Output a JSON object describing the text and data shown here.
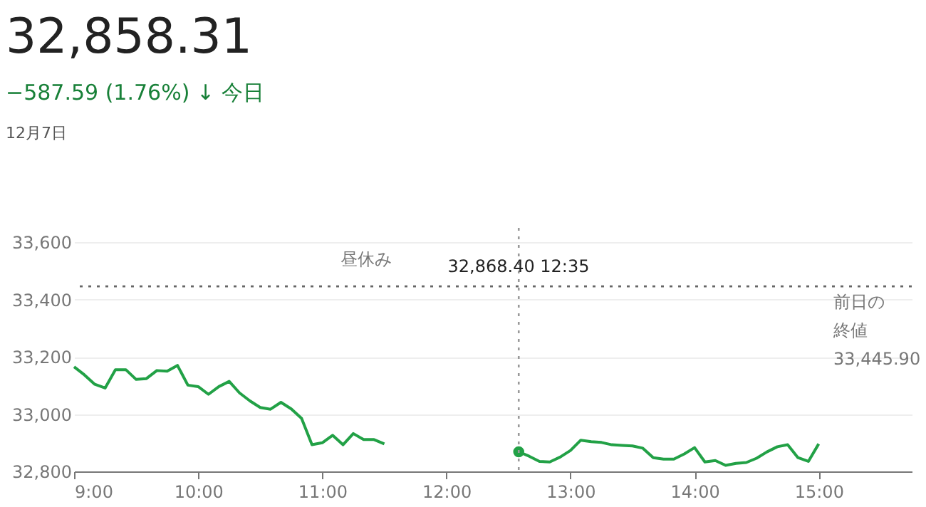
{
  "chart_data": {
    "type": "line",
    "title": "32,858.31",
    "subtitle": "−587.59 (1.76%) ↓ 今日",
    "annotations": [
      "12月7日",
      "昼休み",
      "32,868.40 12:35"
    ],
    "x": [
      9,
      9.083,
      9.167,
      9.25,
      9.333,
      9.417,
      9.5,
      9.583,
      9.667,
      9.75,
      9.833,
      9.917,
      10,
      10.083,
      10.167,
      10.25,
      10.333,
      10.417,
      10.5,
      10.583,
      10.667,
      10.75,
      10.833,
      10.917,
      11,
      11.083,
      11.167,
      11.25,
      11.333,
      11.417,
      11.5,
      12,
      12.583,
      12.667,
      12.75,
      12.833,
      12.917,
      13,
      13.083,
      13.167,
      13.25,
      13.333,
      13.417,
      13.5,
      13.583,
      13.667,
      13.75,
      13.833,
      13.917,
      14,
      14.083,
      14.167,
      14.25,
      14.333,
      14.417,
      14.5,
      14.583,
      14.667,
      14.75,
      14.833,
      14.917,
      15
    ],
    "series": [
      {
        "color": "#22a146",
        "values": [
          33165,
          33137,
          33104,
          33091,
          33155,
          33155,
          33121,
          33124,
          33152,
          33150,
          33170,
          33101,
          33096,
          33069,
          33096,
          33114,
          33074,
          33046,
          33023,
          33017,
          33041,
          33018,
          32985,
          32893,
          32900,
          32926,
          32893,
          32932,
          32911,
          32911,
          32896,
          null,
          32868.4,
          32853,
          32835,
          32833,
          32850,
          32873,
          32909,
          32904,
          32901,
          32893,
          32891,
          32889,
          32881,
          32848,
          32843,
          32843,
          32861,
          32883,
          32833,
          32838,
          32821,
          32828,
          32831,
          32846,
          32868,
          32886,
          32893,
          32848,
          32835,
          32896
        ]
      },
      {
        "type": "scatter",
        "marker": "circle",
        "color": "#22a146",
        "x": [
          12.583
        ],
        "values": [
          32868.4
        ]
      }
    ],
    "xlim": [
      9,
      15.75
    ],
    "ylim": [
      32800,
      33650
    ],
    "xticks": [
      {
        "value": 9,
        "label": "9:00"
      },
      {
        "value": 10,
        "label": "10:00"
      },
      {
        "value": 11,
        "label": "11:00"
      },
      {
        "value": 12,
        "label": "12:00"
      },
      {
        "value": 13,
        "label": "13:00"
      },
      {
        "value": 14,
        "label": "14:00"
      },
      {
        "value": 15,
        "label": "15:00"
      }
    ],
    "yticks": [
      {
        "value": 32800,
        "label": "32,800"
      },
      {
        "value": 33000,
        "label": "33,000"
      },
      {
        "value": 33200,
        "label": "33,200"
      },
      {
        "value": 33400,
        "label": "33,400"
      },
      {
        "value": 33600,
        "label": "33,600"
      }
    ],
    "ref_lines": [
      {
        "axis": "y",
        "value": 33445.9,
        "label": "前日の終値 33,445.90",
        "color": "#666666",
        "line_style": "dotted"
      },
      {
        "axis": "x",
        "value": 12.583,
        "label": null,
        "color": "#999999",
        "line_style": "dotted"
      }
    ],
    "grid": "y",
    "marker": "none",
    "line_style": "solid"
  }
}
